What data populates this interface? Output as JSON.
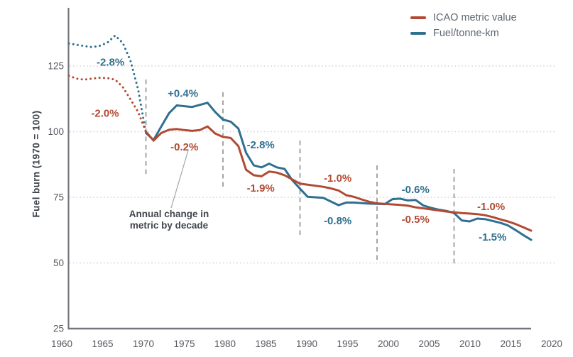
{
  "chart_data": {
    "type": "line",
    "title": "",
    "ylabel": "Fuel burn (1970 = 100)",
    "xlim": [
      1960,
      2020
    ],
    "ylim": [
      25,
      148
    ],
    "x_tick_labels": [
      "1960",
      "1965",
      "1970",
      "1975",
      "1980",
      "1985",
      "1990",
      "1995",
      "2000",
      "2005",
      "2010",
      "2015",
      "2020"
    ],
    "y_tick_labels": [
      "25",
      "50",
      "75",
      "100",
      "125"
    ],
    "y_tick_values": [
      25,
      50,
      75,
      100,
      125
    ],
    "grid_values": [
      50,
      75,
      100,
      125
    ],
    "grid_on": true,
    "legend_position": "top-right",
    "dashed_vline_years": [
      1970,
      1980,
      1990,
      2000,
      2010
    ],
    "years": [
      1960,
      1961,
      1962,
      1963,
      1964,
      1965,
      1966,
      1967,
      1968,
      1969,
      1970,
      1971,
      1972,
      1973,
      1974,
      1975,
      1976,
      1977,
      1978,
      1979,
      1980,
      1981,
      1982,
      1983,
      1984,
      1985,
      1986,
      1987,
      1988,
      1989,
      1990,
      1991,
      1992,
      1993,
      1994,
      1995,
      1996,
      1997,
      1998,
      1999,
      2000,
      2001,
      2002,
      2003,
      2004,
      2005,
      2006,
      2007,
      2008,
      2009,
      2010,
      2011,
      2012,
      2013,
      2014,
      2015,
      2016,
      2017,
      2018,
      2019,
      2020
    ],
    "series": [
      {
        "key": "icao",
        "name": "ICAO metric value",
        "color": "#b14a33",
        "dotted_until_year": 1970,
        "values": [
          121.3,
          120.2,
          119.8,
          120.2,
          120.5,
          120.4,
          119.8,
          117.0,
          112.3,
          107.5,
          100.0,
          96.6,
          99.5,
          100.7,
          101.0,
          100.6,
          100.3,
          100.6,
          102.0,
          99.3,
          98.0,
          97.6,
          94.5,
          85.5,
          83.4,
          83.0,
          84.8,
          84.4,
          83.4,
          81.8,
          80.2,
          79.8,
          79.4,
          79.0,
          78.4,
          77.6,
          75.8,
          75.2,
          74.2,
          73.3,
          72.7,
          72.5,
          72.3,
          72.1,
          71.8,
          71.2,
          70.8,
          70.4,
          70.0,
          69.6,
          69.3,
          69.0,
          68.8,
          68.6,
          68.2,
          67.5,
          66.6,
          65.8,
          64.8,
          63.6,
          62.3
        ]
      },
      {
        "key": "fuel",
        "name": "Fuel/tonne-km",
        "color": "#2f6f90",
        "dotted_until_year": 1970,
        "values": [
          133.6,
          133.1,
          132.6,
          132.2,
          132.7,
          133.9,
          136.6,
          133.8,
          127.0,
          116.0,
          99.5,
          96.8,
          102.0,
          107.0,
          110.0,
          109.7,
          109.4,
          110.2,
          111.0,
          107.5,
          104.6,
          103.8,
          101.2,
          92.0,
          87.2,
          86.4,
          87.8,
          86.4,
          85.8,
          81.5,
          78.3,
          75.2,
          75.0,
          74.8,
          73.4,
          72.0,
          73.0,
          73.0,
          72.8,
          72.6,
          72.5,
          72.4,
          74.3,
          74.5,
          73.8,
          74.0,
          71.9,
          71.0,
          70.3,
          69.8,
          69.0,
          66.2,
          65.8,
          66.9,
          66.7,
          66.0,
          65.3,
          64.3,
          62.5,
          60.6,
          58.8
        ]
      }
    ],
    "annotations": [
      {
        "text": "-2.8%",
        "series": "fuel",
        "x": 1965.4,
        "y": 126.5
      },
      {
        "text": "-2.0%",
        "series": "icao",
        "x": 1964.7,
        "y": 107.0
      },
      {
        "text": "+0.4%",
        "series": "fuel",
        "x": 1974.8,
        "y": 114.6
      },
      {
        "text": "-0.2%",
        "series": "icao",
        "x": 1975.0,
        "y": 94.2
      },
      {
        "text": "-2.8%",
        "series": "fuel",
        "x": 1984.9,
        "y": 95.0
      },
      {
        "text": "-1.9%",
        "series": "icao",
        "x": 1984.9,
        "y": 78.5
      },
      {
        "text": "-1.0%",
        "series": "icao",
        "x": 1994.9,
        "y": 82.3
      },
      {
        "text": "-0.8%",
        "series": "fuel",
        "x": 1994.9,
        "y": 66.1
      },
      {
        "text": "-0.6%",
        "series": "fuel",
        "x": 2005.0,
        "y": 78.0
      },
      {
        "text": "-0.5%",
        "series": "icao",
        "x": 2005.0,
        "y": 66.6
      },
      {
        "text": "-1.0%",
        "series": "icao",
        "x": 2014.8,
        "y": 71.5
      },
      {
        "text": "-1.5%",
        "series": "fuel",
        "x": 2015.0,
        "y": 59.9
      }
    ],
    "note": {
      "text": "Annual change in\nmetric by decade"
    },
    "colors": {
      "axis": "#75767e",
      "grid": "#d4d4d4",
      "dashed_line": "#a6a6a6",
      "tick_label": "#55575e",
      "note_text": "#42464f",
      "pointer_line": "#a8acb0",
      "legend_text": "#5d6671"
    }
  }
}
